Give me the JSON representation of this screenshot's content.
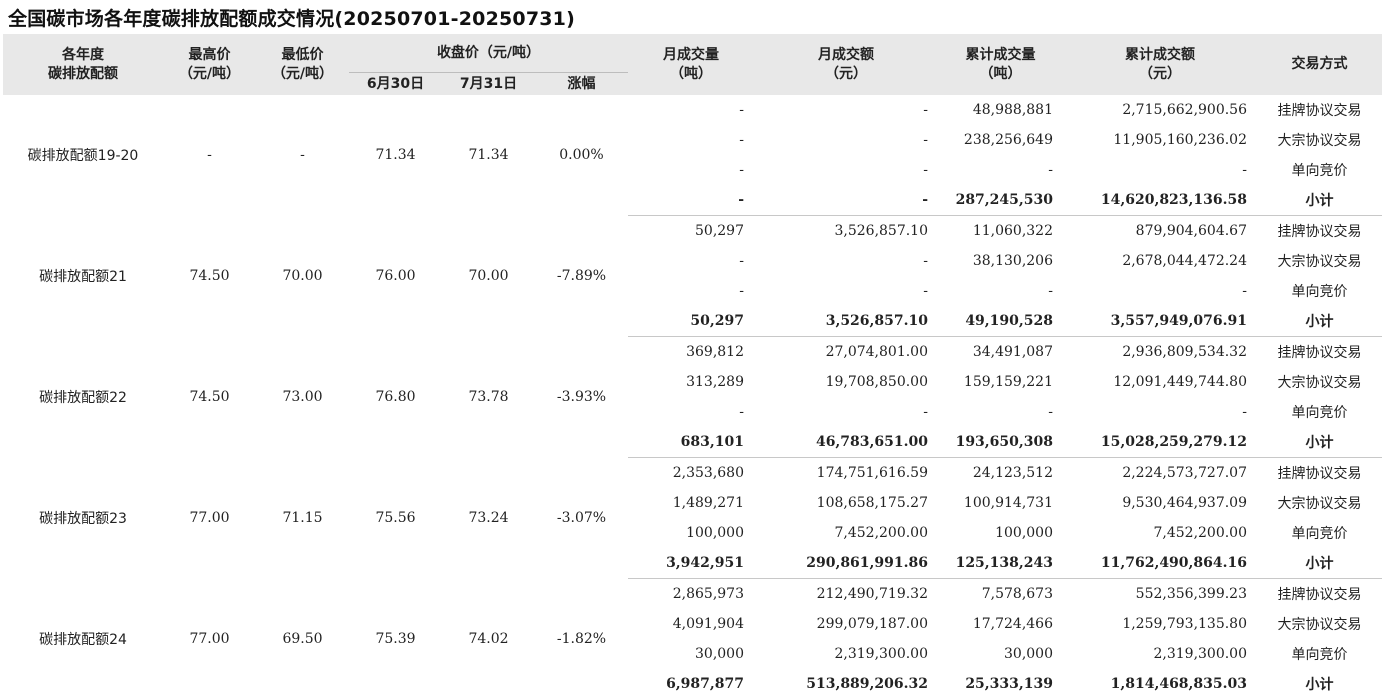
{
  "title": "全国碳市场各年度碳排放配额成交情况(20250701-20250731)",
  "headers": {
    "allowance": [
      "各年度",
      "碳排放配额"
    ],
    "high": [
      "最高价",
      "（元/吨）"
    ],
    "low": [
      "最低价",
      "（元/吨）"
    ],
    "close": "收盘价（元/吨）",
    "close_jun30": "6月30日",
    "close_jul31": "7月31日",
    "change": "涨幅",
    "month_volume": [
      "月成交量",
      "（吨）"
    ],
    "month_amount": [
      "月成交额",
      "（元）"
    ],
    "cum_volume": [
      "累计成交量",
      "（吨）"
    ],
    "cum_amount": [
      "累计成交额",
      "（元）"
    ],
    "trade_method": "交易方式"
  },
  "groups": [
    {
      "name": "碳排放配额19-20",
      "high": "-",
      "low": "-",
      "close_jun30": "71.34",
      "close_jul31": "71.34",
      "change": "0.00%",
      "rows": [
        {
          "month_volume": "-",
          "month_amount": "-",
          "cum_volume": "48,988,881",
          "cum_amount": "2,715,662,900.56",
          "method": "挂牌协议交易"
        },
        {
          "month_volume": "-",
          "month_amount": "-",
          "cum_volume": "238,256,649",
          "cum_amount": "11,905,160,236.02",
          "method": "大宗协议交易"
        },
        {
          "month_volume": "-",
          "month_amount": "-",
          "cum_volume": "-",
          "cum_amount": "-",
          "method": "单向竞价"
        },
        {
          "month_volume": "-",
          "month_amount": "-",
          "cum_volume": "287,245,530",
          "cum_amount": "14,620,823,136.58",
          "method": "小计"
        }
      ]
    },
    {
      "name": "碳排放配额21",
      "high": "74.50",
      "low": "70.00",
      "close_jun30": "76.00",
      "close_jul31": "70.00",
      "change": "-7.89%",
      "rows": [
        {
          "month_volume": "50,297",
          "month_amount": "3,526,857.10",
          "cum_volume": "11,060,322",
          "cum_amount": "879,904,604.67",
          "method": "挂牌协议交易"
        },
        {
          "month_volume": "-",
          "month_amount": "-",
          "cum_volume": "38,130,206",
          "cum_amount": "2,678,044,472.24",
          "method": "大宗协议交易"
        },
        {
          "month_volume": "-",
          "month_amount": "-",
          "cum_volume": "-",
          "cum_amount": "-",
          "method": "单向竞价"
        },
        {
          "month_volume": "50,297",
          "month_amount": "3,526,857.10",
          "cum_volume": "49,190,528",
          "cum_amount": "3,557,949,076.91",
          "method": "小计"
        }
      ]
    },
    {
      "name": "碳排放配额22",
      "high": "74.50",
      "low": "73.00",
      "close_jun30": "76.80",
      "close_jul31": "73.78",
      "change": "-3.93%",
      "rows": [
        {
          "month_volume": "369,812",
          "month_amount": "27,074,801.00",
          "cum_volume": "34,491,087",
          "cum_amount": "2,936,809,534.32",
          "method": "挂牌协议交易"
        },
        {
          "month_volume": "313,289",
          "month_amount": "19,708,850.00",
          "cum_volume": "159,159,221",
          "cum_amount": "12,091,449,744.80",
          "method": "大宗协议交易"
        },
        {
          "month_volume": "-",
          "month_amount": "-",
          "cum_volume": "-",
          "cum_amount": "-",
          "method": "单向竞价"
        },
        {
          "month_volume": "683,101",
          "month_amount": "46,783,651.00",
          "cum_volume": "193,650,308",
          "cum_amount": "15,028,259,279.12",
          "method": "小计"
        }
      ]
    },
    {
      "name": "碳排放配额23",
      "high": "77.00",
      "low": "71.15",
      "close_jun30": "75.56",
      "close_jul31": "73.24",
      "change": "-3.07%",
      "rows": [
        {
          "month_volume": "2,353,680",
          "month_amount": "174,751,616.59",
          "cum_volume": "24,123,512",
          "cum_amount": "2,224,573,727.07",
          "method": "挂牌协议交易"
        },
        {
          "month_volume": "1,489,271",
          "month_amount": "108,658,175.27",
          "cum_volume": "100,914,731",
          "cum_amount": "9,530,464,937.09",
          "method": "大宗协议交易"
        },
        {
          "month_volume": "100,000",
          "month_amount": "7,452,200.00",
          "cum_volume": "100,000",
          "cum_amount": "7,452,200.00",
          "method": "单向竞价"
        },
        {
          "month_volume": "3,942,951",
          "month_amount": "290,861,991.86",
          "cum_volume": "125,138,243",
          "cum_amount": "11,762,490,864.16",
          "method": "小计"
        }
      ]
    },
    {
      "name": "碳排放配额24",
      "high": "77.00",
      "low": "69.50",
      "close_jun30": "75.39",
      "close_jul31": "74.02",
      "change": "-1.82%",
      "rows": [
        {
          "month_volume": "2,865,973",
          "month_amount": "212,490,719.32",
          "cum_volume": "7,578,673",
          "cum_amount": "552,356,399.23",
          "method": "挂牌协议交易"
        },
        {
          "month_volume": "4,091,904",
          "month_amount": "299,079,187.00",
          "cum_volume": "17,724,466",
          "cum_amount": "1,259,793,135.80",
          "method": "大宗协议交易"
        },
        {
          "month_volume": "30,000",
          "month_amount": "2,319,300.00",
          "cum_volume": "30,000",
          "cum_amount": "2,319,300.00",
          "method": "单向竞价"
        },
        {
          "month_volume": "6,987,877",
          "month_amount": "513,889,206.32",
          "cum_volume": "25,333,139",
          "cum_amount": "1,814,468,835.03",
          "method": "小计"
        }
      ]
    }
  ]
}
